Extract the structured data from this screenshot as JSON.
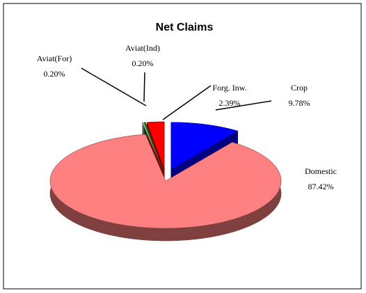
{
  "chart_data": {
    "type": "pie",
    "title": "Net Claims",
    "categories": [
      "Crop",
      "Domestic",
      "Aviat(For)",
      "Aviat(Ind)",
      "Forg. Inw."
    ],
    "values": [
      9.78,
      87.42,
      0.2,
      0.2,
      2.39
    ],
    "value_labels": [
      "9.78%",
      "87.42%",
      "0.20%",
      "0.20%",
      "2.39%"
    ],
    "colors": [
      "#0000ff",
      "#ff8080",
      "#c0c0c0",
      "#008000",
      "#ff0000"
    ]
  }
}
